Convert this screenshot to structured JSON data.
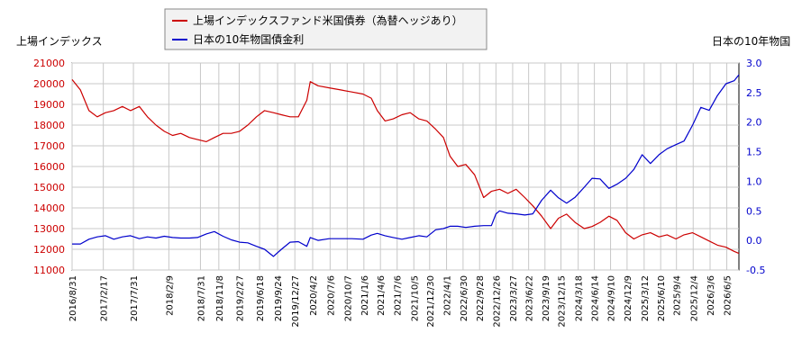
{
  "chart_data": {
    "type": "line",
    "grid": true,
    "legend_position": "top",
    "left_axis_label": "上場インデックス",
    "right_axis_label": "日本の10年物国",
    "left_ylim": [
      11000,
      21000
    ],
    "right_ylim": [
      -0.5,
      3.0
    ],
    "left_yticks": [
      "11000",
      "12000",
      "13000",
      "14000",
      "15000",
      "16000",
      "17000",
      "18000",
      "19000",
      "20000",
      "21000"
    ],
    "right_yticks": [
      "-0.5",
      "0.0",
      "0.5",
      "1.0",
      "1.5",
      "2.0",
      "2.5",
      "3.0"
    ],
    "xlim": [
      "2016-08-31",
      "2026-08-10"
    ],
    "xticks": [
      "2016/8/31",
      "2017/2/17",
      "2017/7/31",
      "2018/2/9",
      "2018/7/31",
      "2018/11/8",
      "2019/2/27",
      "2019/6/18",
      "2019/9/24",
      "2019/12/27",
      "2020/4/2",
      "2020/7/6",
      "2020/10/7",
      "2021/1/6",
      "2021/4/6",
      "2021/7/6",
      "2021/10/5",
      "2021/12/30",
      "2022/4/1",
      "2022/6/30",
      "2022/9/28",
      "2022/12/26",
      "2023/3/27",
      "2023/6/22",
      "2023/9/19",
      "2023/12/15",
      "2024/3/18",
      "2024/6/14",
      "2024/9/10",
      "2024/12/9",
      "2025/3/12",
      "2025/6/10",
      "2025/9/4",
      "2025/12/4",
      "2026/3/6",
      "2026/6/5"
    ],
    "series": [
      {
        "name": "上場インデックスファンド米国債券（為替ヘッジあり）",
        "axis": "left",
        "color": "#cc0000",
        "points": [
          [
            "2016-08-31",
            20200
          ],
          [
            "2016-10-15",
            19700
          ],
          [
            "2016-12-01",
            18700
          ],
          [
            "2017-01-15",
            18400
          ],
          [
            "2017-03-01",
            18600
          ],
          [
            "2017-04-15",
            18700
          ],
          [
            "2017-06-01",
            18900
          ],
          [
            "2017-07-15",
            18700
          ],
          [
            "2017-09-01",
            18900
          ],
          [
            "2017-10-15",
            18400
          ],
          [
            "2017-12-01",
            18000
          ],
          [
            "2018-01-15",
            17700
          ],
          [
            "2018-03-01",
            17500
          ],
          [
            "2018-04-15",
            17600
          ],
          [
            "2018-06-01",
            17400
          ],
          [
            "2018-07-15",
            17300
          ],
          [
            "2018-09-01",
            17200
          ],
          [
            "2018-10-15",
            17400
          ],
          [
            "2018-12-01",
            17600
          ],
          [
            "2019-01-15",
            17600
          ],
          [
            "2019-03-01",
            17700
          ],
          [
            "2019-04-15",
            18000
          ],
          [
            "2019-06-01",
            18400
          ],
          [
            "2019-07-15",
            18700
          ],
          [
            "2019-09-01",
            18600
          ],
          [
            "2019-10-15",
            18500
          ],
          [
            "2019-12-01",
            18400
          ],
          [
            "2020-01-15",
            18400
          ],
          [
            "2020-03-01",
            19200
          ],
          [
            "2020-03-20",
            20100
          ],
          [
            "2020-05-01",
            19900
          ],
          [
            "2020-07-01",
            19800
          ],
          [
            "2020-09-01",
            19700
          ],
          [
            "2020-11-01",
            19600
          ],
          [
            "2021-01-01",
            19500
          ],
          [
            "2021-02-15",
            19300
          ],
          [
            "2021-03-20",
            18700
          ],
          [
            "2021-05-01",
            18200
          ],
          [
            "2021-06-15",
            18300
          ],
          [
            "2021-08-01",
            18500
          ],
          [
            "2021-09-15",
            18600
          ],
          [
            "2021-11-01",
            18300
          ],
          [
            "2021-12-15",
            18200
          ],
          [
            "2022-02-01",
            17800
          ],
          [
            "2022-03-15",
            17400
          ],
          [
            "2022-04-20",
            16500
          ],
          [
            "2022-06-01",
            16000
          ],
          [
            "2022-07-15",
            16100
          ],
          [
            "2022-09-01",
            15600
          ],
          [
            "2022-10-20",
            14500
          ],
          [
            "2022-12-01",
            14800
          ],
          [
            "2023-01-15",
            14900
          ],
          [
            "2023-03-01",
            14700
          ],
          [
            "2023-04-15",
            14900
          ],
          [
            "2023-06-01",
            14500
          ],
          [
            "2023-07-15",
            14100
          ],
          [
            "2023-09-01",
            13600
          ],
          [
            "2023-10-20",
            13000
          ],
          [
            "2023-12-01",
            13500
          ],
          [
            "2024-01-15",
            13700
          ],
          [
            "2024-03-01",
            13300
          ],
          [
            "2024-04-20",
            13000
          ],
          [
            "2024-06-01",
            13100
          ],
          [
            "2024-07-15",
            13300
          ],
          [
            "2024-09-01",
            13600
          ],
          [
            "2024-10-15",
            13400
          ],
          [
            "2024-12-01",
            12800
          ],
          [
            "2025-01-15",
            12500
          ],
          [
            "2025-03-01",
            12700
          ],
          [
            "2025-04-15",
            12800
          ],
          [
            "2025-06-01",
            12600
          ],
          [
            "2025-07-15",
            12700
          ],
          [
            "2025-09-01",
            12500
          ],
          [
            "2025-10-15",
            12700
          ],
          [
            "2025-12-01",
            12800
          ],
          [
            "2026-01-15",
            12600
          ],
          [
            "2026-03-01",
            12400
          ],
          [
            "2026-04-15",
            12200
          ],
          [
            "2026-06-01",
            12100
          ],
          [
            "2026-07-15",
            11900
          ],
          [
            "2026-08-10",
            11800
          ]
        ]
      },
      {
        "name": "日本の10年物国債金利",
        "axis": "right",
        "color": "#0000cc",
        "points": [
          [
            "2016-08-31",
            -0.06
          ],
          [
            "2016-10-15",
            -0.06
          ],
          [
            "2016-12-01",
            0.02
          ],
          [
            "2017-01-15",
            0.06
          ],
          [
            "2017-03-01",
            0.08
          ],
          [
            "2017-04-15",
            0.02
          ],
          [
            "2017-06-01",
            0.06
          ],
          [
            "2017-07-15",
            0.08
          ],
          [
            "2017-09-01",
            0.03
          ],
          [
            "2017-10-15",
            0.06
          ],
          [
            "2017-12-01",
            0.04
          ],
          [
            "2018-01-15",
            0.07
          ],
          [
            "2018-03-01",
            0.05
          ],
          [
            "2018-04-15",
            0.04
          ],
          [
            "2018-06-01",
            0.04
          ],
          [
            "2018-07-15",
            0.05
          ],
          [
            "2018-09-01",
            0.11
          ],
          [
            "2018-10-15",
            0.15
          ],
          [
            "2018-12-01",
            0.07
          ],
          [
            "2019-01-15",
            0.01
          ],
          [
            "2019-03-01",
            -0.03
          ],
          [
            "2019-04-15",
            -0.04
          ],
          [
            "2019-06-01",
            -0.1
          ],
          [
            "2019-07-15",
            -0.15
          ],
          [
            "2019-09-01",
            -0.27
          ],
          [
            "2019-10-15",
            -0.15
          ],
          [
            "2019-12-01",
            -0.03
          ],
          [
            "2020-01-15",
            -0.02
          ],
          [
            "2020-03-01",
            -0.1
          ],
          [
            "2020-03-20",
            0.05
          ],
          [
            "2020-05-01",
            0.0
          ],
          [
            "2020-07-01",
            0.03
          ],
          [
            "2020-09-01",
            0.03
          ],
          [
            "2020-11-01",
            0.03
          ],
          [
            "2021-01-01",
            0.02
          ],
          [
            "2021-02-15",
            0.09
          ],
          [
            "2021-03-20",
            0.12
          ],
          [
            "2021-05-01",
            0.08
          ],
          [
            "2021-06-15",
            0.05
          ],
          [
            "2021-08-01",
            0.02
          ],
          [
            "2021-09-15",
            0.05
          ],
          [
            "2021-11-01",
            0.08
          ],
          [
            "2021-12-15",
            0.06
          ],
          [
            "2022-02-01",
            0.18
          ],
          [
            "2022-03-15",
            0.2
          ],
          [
            "2022-04-20",
            0.24
          ],
          [
            "2022-06-01",
            0.24
          ],
          [
            "2022-07-15",
            0.22
          ],
          [
            "2022-09-01",
            0.24
          ],
          [
            "2022-10-20",
            0.25
          ],
          [
            "2022-12-01",
            0.25
          ],
          [
            "2022-12-26",
            0.45
          ],
          [
            "2023-01-15",
            0.5
          ],
          [
            "2023-03-01",
            0.46
          ],
          [
            "2023-04-15",
            0.45
          ],
          [
            "2023-06-01",
            0.43
          ],
          [
            "2023-07-15",
            0.45
          ],
          [
            "2023-09-01",
            0.68
          ],
          [
            "2023-10-20",
            0.85
          ],
          [
            "2023-12-01",
            0.72
          ],
          [
            "2024-01-15",
            0.63
          ],
          [
            "2024-03-01",
            0.73
          ],
          [
            "2024-04-20",
            0.9
          ],
          [
            "2024-06-01",
            1.05
          ],
          [
            "2024-07-15",
            1.04
          ],
          [
            "2024-09-01",
            0.88
          ],
          [
            "2024-10-15",
            0.95
          ],
          [
            "2024-12-01",
            1.05
          ],
          [
            "2025-01-15",
            1.2
          ],
          [
            "2025-03-01",
            1.45
          ],
          [
            "2025-04-15",
            1.3
          ],
          [
            "2025-06-01",
            1.45
          ],
          [
            "2025-07-15",
            1.55
          ],
          [
            "2025-09-01",
            1.62
          ],
          [
            "2025-10-15",
            1.68
          ],
          [
            "2025-12-01",
            1.95
          ],
          [
            "2026-01-15",
            2.25
          ],
          [
            "2026-03-01",
            2.2
          ],
          [
            "2026-04-15",
            2.45
          ],
          [
            "2026-06-01",
            2.65
          ],
          [
            "2026-07-15",
            2.7
          ],
          [
            "2026-08-10",
            2.8
          ]
        ]
      }
    ]
  }
}
